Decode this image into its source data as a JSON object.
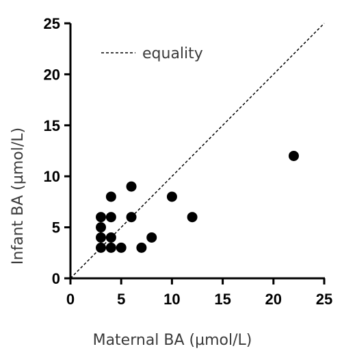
{
  "chart_data": {
    "type": "scatter",
    "title": "",
    "xlabel": "Maternal BA (µmol/L)",
    "ylabel": "Infant BA (µmol/L)",
    "xlim": [
      0,
      25
    ],
    "ylim": [
      0,
      25
    ],
    "xticks": [
      0,
      5,
      10,
      15,
      20,
      25
    ],
    "yticks": [
      0,
      5,
      10,
      15,
      20,
      25
    ],
    "grid": false,
    "legend": {
      "position": "top-left",
      "entries": [
        {
          "label": "equality",
          "style": "dashed"
        }
      ]
    },
    "reference_line": {
      "name": "equality",
      "x": [
        0,
        25
      ],
      "y": [
        0,
        25
      ]
    },
    "points": [
      {
        "x": 3,
        "y": 6
      },
      {
        "x": 3,
        "y": 5
      },
      {
        "x": 3,
        "y": 4
      },
      {
        "x": 3,
        "y": 3
      },
      {
        "x": 4,
        "y": 8
      },
      {
        "x": 4,
        "y": 6
      },
      {
        "x": 4,
        "y": 4
      },
      {
        "x": 4,
        "y": 3
      },
      {
        "x": 5,
        "y": 3
      },
      {
        "x": 6,
        "y": 9
      },
      {
        "x": 6,
        "y": 6
      },
      {
        "x": 7,
        "y": 3
      },
      {
        "x": 8,
        "y": 4
      },
      {
        "x": 10,
        "y": 8
      },
      {
        "x": 12,
        "y": 6
      },
      {
        "x": 22,
        "y": 12
      }
    ],
    "colors": {
      "marker": "#000000",
      "axis": "#000000",
      "text": "#3a3a3a"
    }
  }
}
